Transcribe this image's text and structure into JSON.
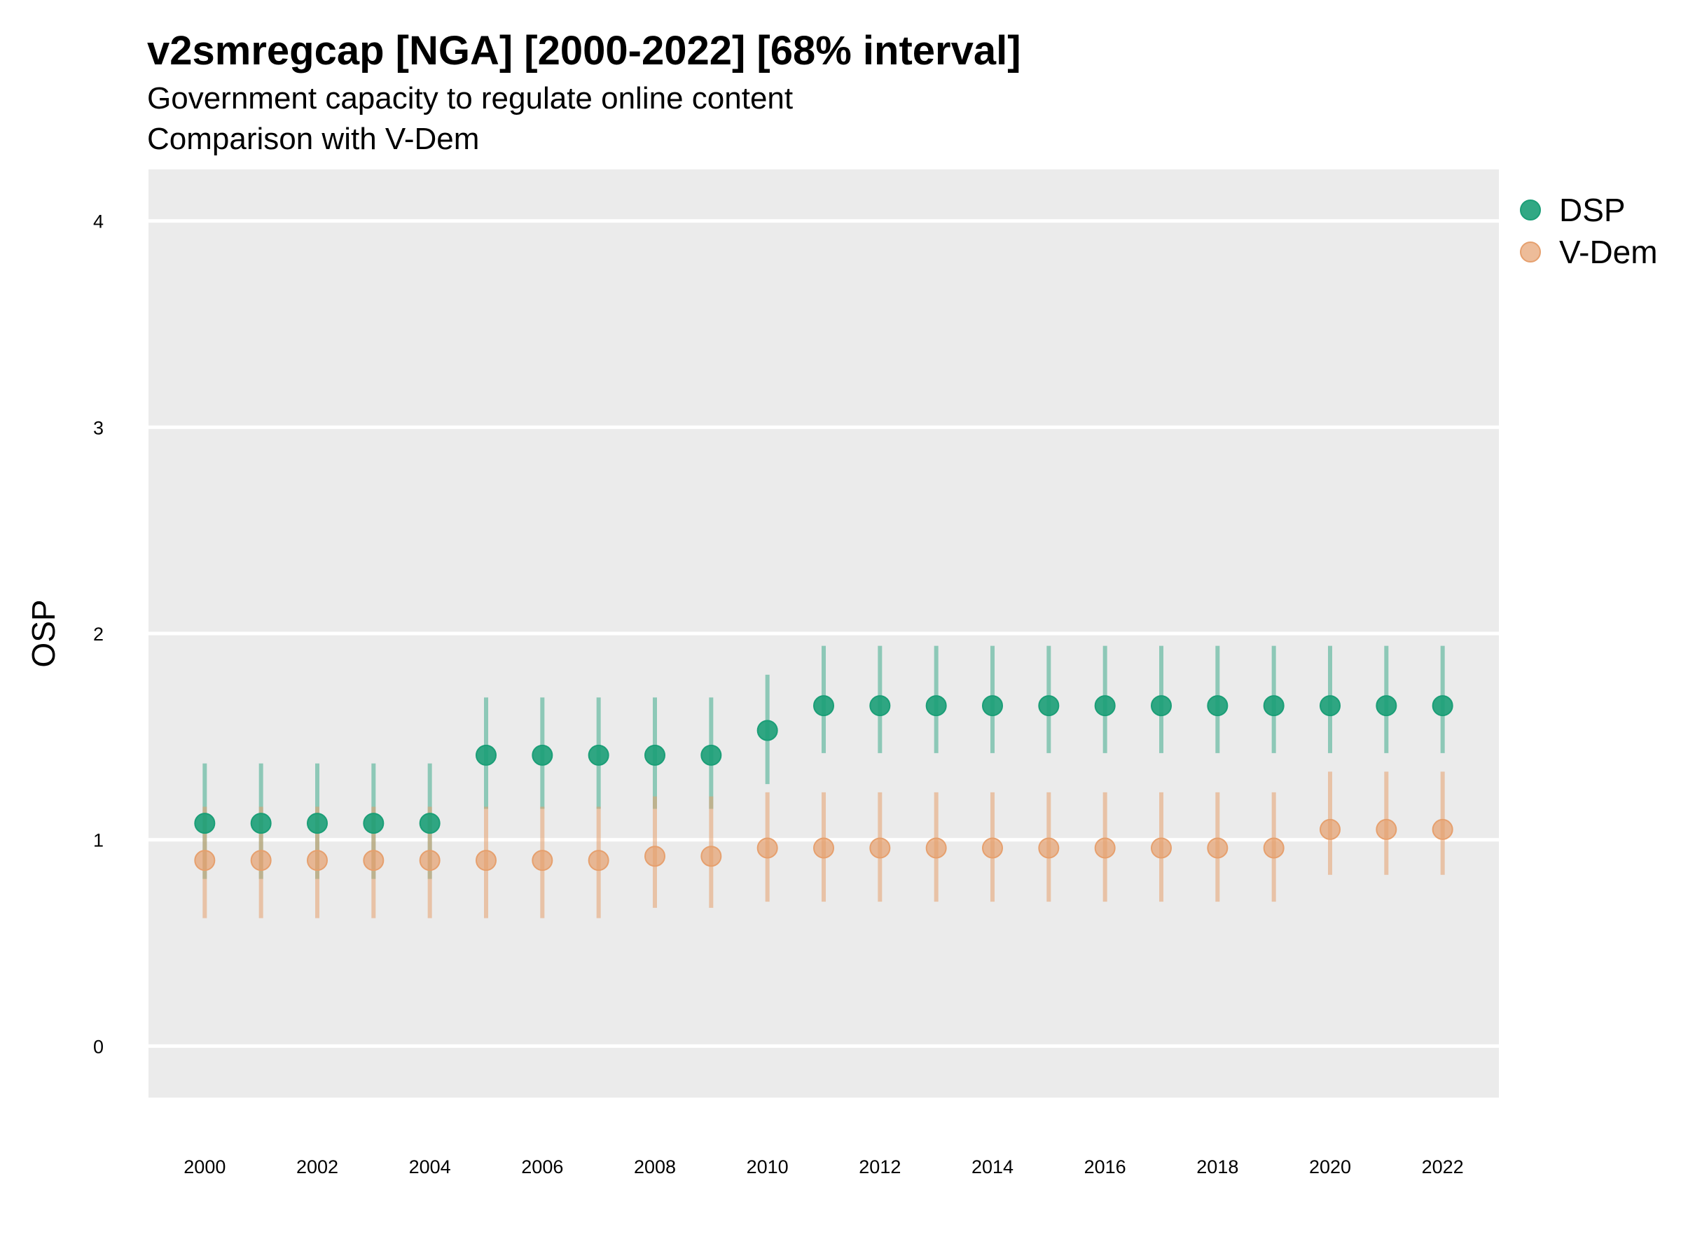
{
  "chart_data": {
    "type": "scatter",
    "title": "v2smregcap [NGA] [2000-2022] [68% interval]",
    "subtitle_lines": [
      "Government capacity to regulate online content",
      "Comparison with V-Dem"
    ],
    "xlabel": "",
    "ylabel": "OSP",
    "x": [
      2000,
      2001,
      2002,
      2003,
      2004,
      2005,
      2006,
      2007,
      2008,
      2009,
      2010,
      2011,
      2012,
      2013,
      2014,
      2015,
      2016,
      2017,
      2018,
      2019,
      2020,
      2021,
      2022
    ],
    "x_ticks": [
      2000,
      2002,
      2004,
      2006,
      2008,
      2010,
      2012,
      2014,
      2016,
      2018,
      2020,
      2022
    ],
    "y_ticks": [
      0,
      1,
      2,
      3,
      4
    ],
    "xlim": [
      1999,
      2023
    ],
    "ylim": [
      -0.25,
      4.25
    ],
    "grid": true,
    "legend_position": "right",
    "series": [
      {
        "name": "DSP",
        "color": "#1b9e77",
        "values": [
          1.08,
          1.08,
          1.08,
          1.08,
          1.08,
          1.41,
          1.41,
          1.41,
          1.41,
          1.41,
          1.53,
          1.65,
          1.65,
          1.65,
          1.65,
          1.65,
          1.65,
          1.65,
          1.65,
          1.65,
          1.65,
          1.65,
          1.65
        ],
        "lower": [
          0.81,
          0.81,
          0.81,
          0.81,
          0.81,
          1.15,
          1.15,
          1.15,
          1.15,
          1.15,
          1.27,
          1.42,
          1.42,
          1.42,
          1.42,
          1.42,
          1.42,
          1.42,
          1.42,
          1.42,
          1.42,
          1.42,
          1.42
        ],
        "upper": [
          1.37,
          1.37,
          1.37,
          1.37,
          1.37,
          1.69,
          1.69,
          1.69,
          1.69,
          1.69,
          1.8,
          1.94,
          1.94,
          1.94,
          1.94,
          1.94,
          1.94,
          1.94,
          1.94,
          1.94,
          1.94,
          1.94,
          1.94
        ]
      },
      {
        "name": "V-Dem",
        "color": "#e6a06e",
        "values": [
          0.9,
          0.9,
          0.9,
          0.9,
          0.9,
          0.9,
          0.9,
          0.9,
          0.92,
          0.92,
          0.96,
          0.96,
          0.96,
          0.96,
          0.96,
          0.96,
          0.96,
          0.96,
          0.96,
          0.96,
          1.05,
          1.05,
          1.05
        ],
        "lower": [
          0.62,
          0.62,
          0.62,
          0.62,
          0.62,
          0.62,
          0.62,
          0.62,
          0.67,
          0.67,
          0.7,
          0.7,
          0.7,
          0.7,
          0.7,
          0.7,
          0.7,
          0.7,
          0.7,
          0.7,
          0.83,
          0.83,
          0.83
        ],
        "upper": [
          1.16,
          1.16,
          1.16,
          1.16,
          1.16,
          1.16,
          1.16,
          1.16,
          1.21,
          1.21,
          1.23,
          1.23,
          1.23,
          1.23,
          1.23,
          1.23,
          1.23,
          1.23,
          1.23,
          1.23,
          1.33,
          1.33,
          1.33
        ]
      }
    ]
  }
}
